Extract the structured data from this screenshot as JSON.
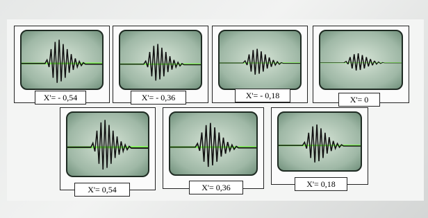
{
  "cards": [
    {
      "label": "X'= - 0,54"
    },
    {
      "label": "X'= - 0,36"
    },
    {
      "label": "X'= - 0,18"
    },
    {
      "label": "X'= 0"
    },
    {
      "label": "X'= 0,54"
    },
    {
      "label": "X'= 0,36"
    },
    {
      "label": "X'= 0,18"
    }
  ]
}
